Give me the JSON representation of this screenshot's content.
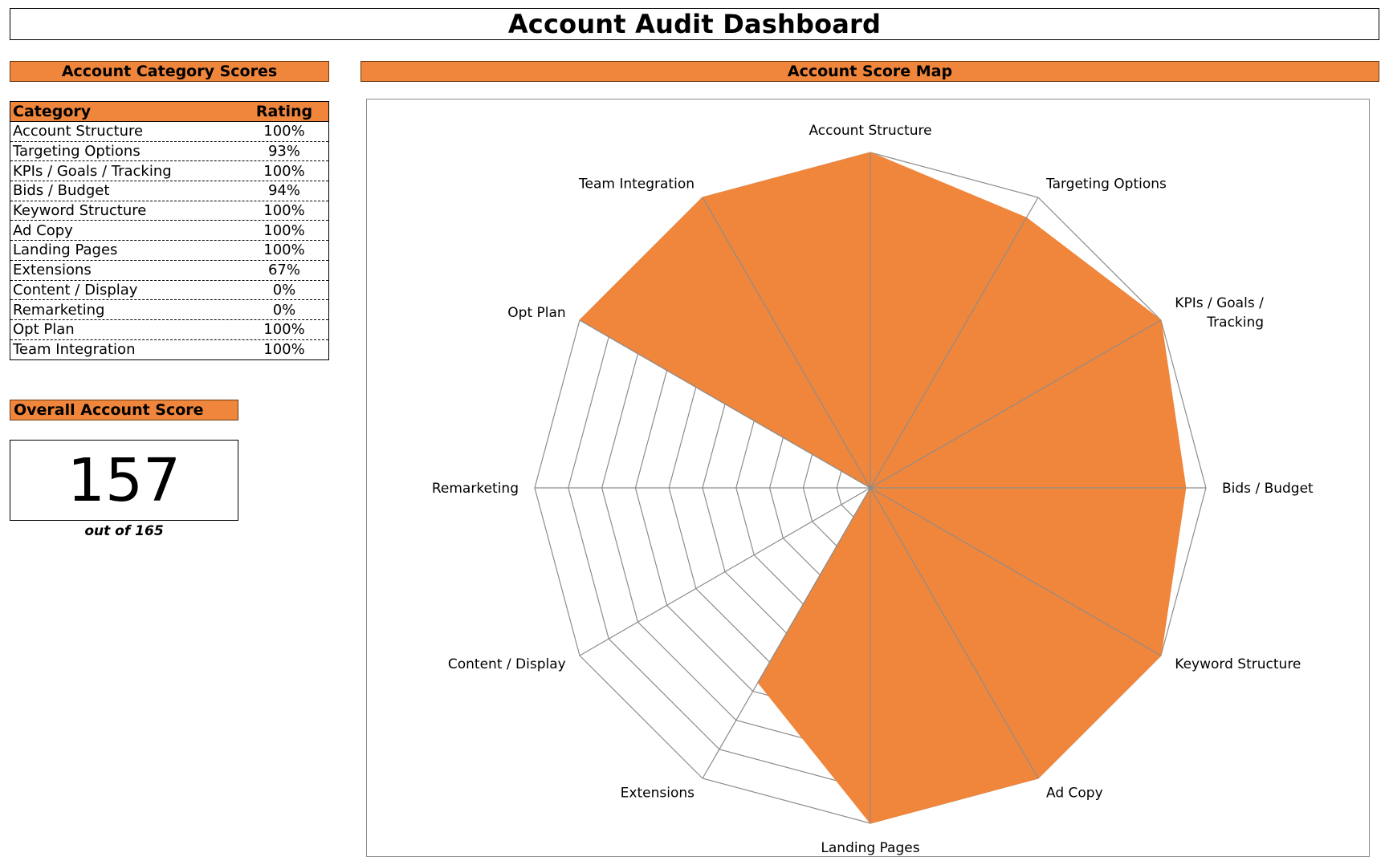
{
  "title": "Account Audit Dashboard",
  "category_section": {
    "header": "Account Category Scores",
    "col_category": "Category",
    "col_rating": "Rating",
    "rows": [
      {
        "category": "Account Structure",
        "rating": "100%"
      },
      {
        "category": "Targeting Options",
        "rating": "93%"
      },
      {
        "category": "KPIs / Goals / Tracking",
        "rating": "100%"
      },
      {
        "category": "Bids / Budget",
        "rating": "94%"
      },
      {
        "category": "Keyword Structure",
        "rating": "100%"
      },
      {
        "category": "Ad Copy",
        "rating": "100%"
      },
      {
        "category": "Landing Pages",
        "rating": "100%"
      },
      {
        "category": "Extensions",
        "rating": "67%"
      },
      {
        "category": "Content / Display",
        "rating": "0%"
      },
      {
        "category": "Remarketing",
        "rating": "0%"
      },
      {
        "category": "Opt Plan",
        "rating": "100%"
      },
      {
        "category": "Team Integration",
        "rating": "100%"
      }
    ]
  },
  "overall": {
    "header": "Overall Account Score",
    "score": "157",
    "subtitle": "out of 165"
  },
  "map_section": {
    "header": "Account Score Map"
  },
  "colors": {
    "accent": "#f0863b",
    "grid": "#8c8c8c"
  },
  "chart_data": {
    "type": "radar",
    "categories": [
      "Account Structure",
      "Targeting Options",
      "KPIs / Goals / Tracking",
      "Bids / Budget",
      "Keyword Structure",
      "Ad Copy",
      "Landing Pages",
      "Extensions",
      "Content / Display",
      "Remarketing",
      "Opt Plan",
      "Team Integration"
    ],
    "axis_labels": [
      [
        "Account Structure"
      ],
      [
        "Targeting Options"
      ],
      [
        "KPIs / Goals /",
        "Tracking"
      ],
      [
        "Bids / Budget"
      ],
      [
        "Keyword Structure"
      ],
      [
        "Ad Copy"
      ],
      [
        "Landing Pages"
      ],
      [
        "Extensions"
      ],
      [
        "Content / Display"
      ],
      [
        "Remarketing"
      ],
      [
        "Opt Plan"
      ],
      [
        "Team Integration"
      ]
    ],
    "series": [
      {
        "values": [
          1.0,
          0.93,
          1.0,
          0.94,
          1.0,
          1.0,
          1.0,
          0.67,
          0.0,
          0.0,
          1.0,
          1.0
        ],
        "fill": "#f0863b"
      }
    ],
    "range": [
      0,
      1
    ],
    "grid_levels": 10,
    "fill": "filled"
  }
}
